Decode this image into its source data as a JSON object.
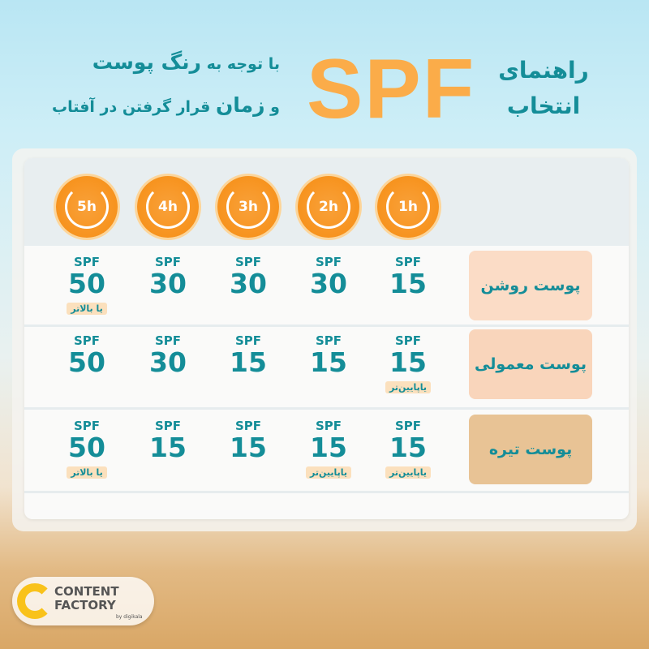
{
  "header": {
    "title_line1": "راهنمای",
    "title_line2": "انتخاب",
    "spf": "SPF",
    "sub1_a": "با توجه به ",
    "sub1_b": "رنگ پوست",
    "sub2_a": "و ",
    "sub2_b": "زمان",
    "sub2_c": " قرار گرفتن در آفتاب"
  },
  "hours": [
    "1h",
    "2h",
    "3h",
    "4h",
    "5h"
  ],
  "rows": [
    {
      "label": "پوست روشن",
      "cells": [
        {
          "k": "SPF",
          "v": "15",
          "n": ""
        },
        {
          "k": "SPF",
          "v": "30",
          "n": ""
        },
        {
          "k": "SPF",
          "v": "30",
          "n": ""
        },
        {
          "k": "SPF",
          "v": "30",
          "n": ""
        },
        {
          "k": "SPF",
          "v": "50",
          "n": "یا بالاتر"
        }
      ]
    },
    {
      "label": "پوست معمولی",
      "cells": [
        {
          "k": "SPF",
          "v": "15",
          "n": "یاپایین‌تر"
        },
        {
          "k": "SPF",
          "v": "15",
          "n": ""
        },
        {
          "k": "SPF",
          "v": "15",
          "n": ""
        },
        {
          "k": "SPF",
          "v": "30",
          "n": ""
        },
        {
          "k": "SPF",
          "v": "50",
          "n": ""
        }
      ]
    },
    {
      "label": "پوست تیره",
      "cells": [
        {
          "k": "SPF",
          "v": "15",
          "n": "یاپایین‌تر"
        },
        {
          "k": "SPF",
          "v": "15",
          "n": "یاپایین‌تر"
        },
        {
          "k": "SPF",
          "v": "15",
          "n": ""
        },
        {
          "k": "SPF",
          "v": "15",
          "n": ""
        },
        {
          "k": "SPF",
          "v": "50",
          "n": "یا بالاتر"
        }
      ]
    }
  ],
  "colors": {
    "teal": "#148d98",
    "orange": "#fbac49",
    "label_bg": [
      "#fbdcc6",
      "#f9d5bb",
      "#e8c395"
    ]
  },
  "logo": {
    "line1": "CONTENT",
    "line2": "FACTORY",
    "by": "by digikala"
  }
}
